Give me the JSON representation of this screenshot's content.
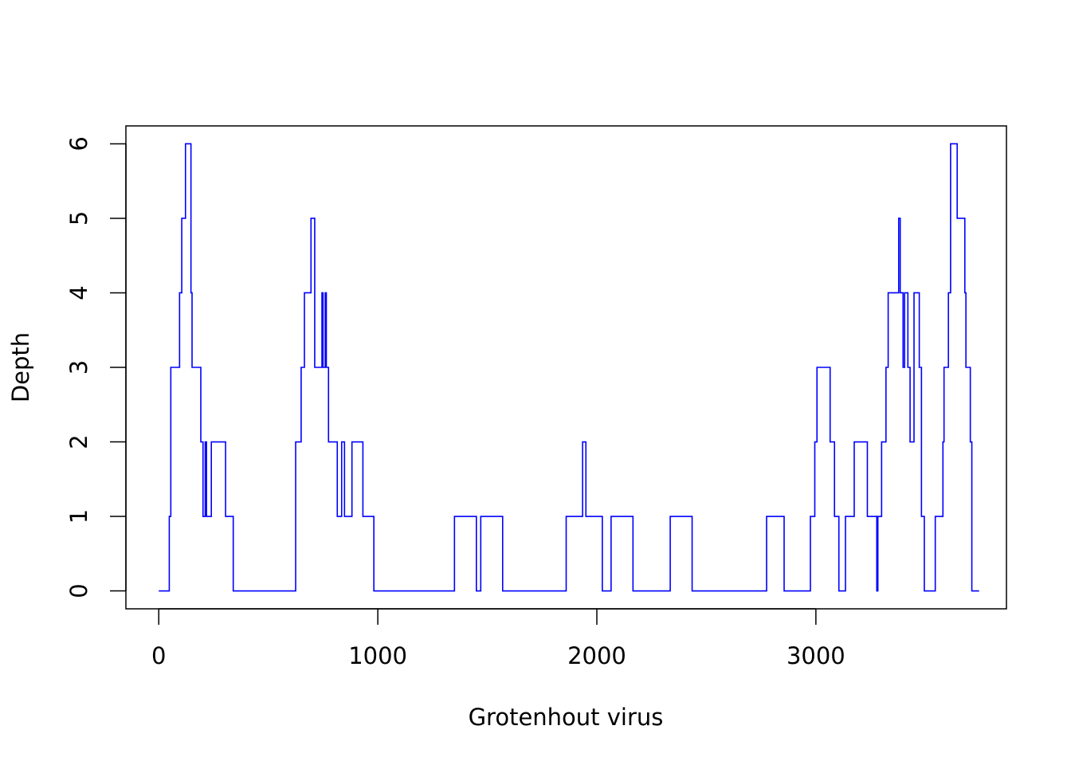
{
  "chart_data": {
    "type": "line",
    "title": "",
    "xlabel": "Grotenhout virus",
    "ylabel": "Depth",
    "xlim": [
      -150,
      3870
    ],
    "ylim": [
      -0.24,
      6.24
    ],
    "x_ticks": [
      0,
      1000,
      2000,
      3000
    ],
    "x_tick_labels": [
      "0",
      "1000",
      "2000",
      "3000"
    ],
    "y_ticks": [
      0,
      1,
      2,
      3,
      4,
      5,
      6
    ],
    "y_tick_labels": [
      "0",
      "1",
      "2",
      "3",
      "4",
      "5",
      "6"
    ],
    "grid": false,
    "legend": "none",
    "series": [
      {
        "color": "#0000ff",
        "step": true,
        "points": [
          [
            0,
            0
          ],
          [
            48,
            1
          ],
          [
            55,
            3
          ],
          [
            95,
            4
          ],
          [
            105,
            5
          ],
          [
            122,
            6
          ],
          [
            147,
            4
          ],
          [
            152,
            3
          ],
          [
            192,
            2
          ],
          [
            202,
            1
          ],
          [
            212,
            2
          ],
          [
            218,
            1
          ],
          [
            240,
            2
          ],
          [
            305,
            1
          ],
          [
            340,
            0
          ],
          [
            625,
            2
          ],
          [
            650,
            3
          ],
          [
            665,
            4
          ],
          [
            695,
            5
          ],
          [
            712,
            3
          ],
          [
            745,
            4
          ],
          [
            750,
            3
          ],
          [
            760,
            4
          ],
          [
            765,
            3
          ],
          [
            775,
            2
          ],
          [
            815,
            1
          ],
          [
            835,
            2
          ],
          [
            848,
            1
          ],
          [
            882,
            2
          ],
          [
            932,
            1
          ],
          [
            982,
            0
          ],
          [
            1350,
            1
          ],
          [
            1450,
            0
          ],
          [
            1470,
            1
          ],
          [
            1570,
            0
          ],
          [
            1860,
            1
          ],
          [
            1935,
            2
          ],
          [
            1950,
            1
          ],
          [
            2025,
            0
          ],
          [
            2065,
            1
          ],
          [
            2165,
            0
          ],
          [
            2335,
            1
          ],
          [
            2435,
            0
          ],
          [
            2775,
            1
          ],
          [
            2855,
            0
          ],
          [
            2975,
            1
          ],
          [
            2995,
            2
          ],
          [
            3005,
            3
          ],
          [
            3065,
            2
          ],
          [
            3085,
            1
          ],
          [
            3105,
            0
          ],
          [
            3135,
            1
          ],
          [
            3175,
            2
          ],
          [
            3235,
            1
          ],
          [
            3278,
            0
          ],
          [
            3283,
            1
          ],
          [
            3300,
            2
          ],
          [
            3320,
            3
          ],
          [
            3330,
            4
          ],
          [
            3378,
            5
          ],
          [
            3385,
            4
          ],
          [
            3398,
            3
          ],
          [
            3405,
            4
          ],
          [
            3420,
            3
          ],
          [
            3430,
            2
          ],
          [
            3448,
            4
          ],
          [
            3472,
            3
          ],
          [
            3482,
            1
          ],
          [
            3495,
            0
          ],
          [
            3545,
            1
          ],
          [
            3580,
            2
          ],
          [
            3585,
            3
          ],
          [
            3605,
            4
          ],
          [
            3615,
            6
          ],
          [
            3645,
            5
          ],
          [
            3680,
            4
          ],
          [
            3685,
            3
          ],
          [
            3705,
            2
          ],
          [
            3712,
            0
          ],
          [
            3745,
            0
          ]
        ]
      }
    ]
  }
}
